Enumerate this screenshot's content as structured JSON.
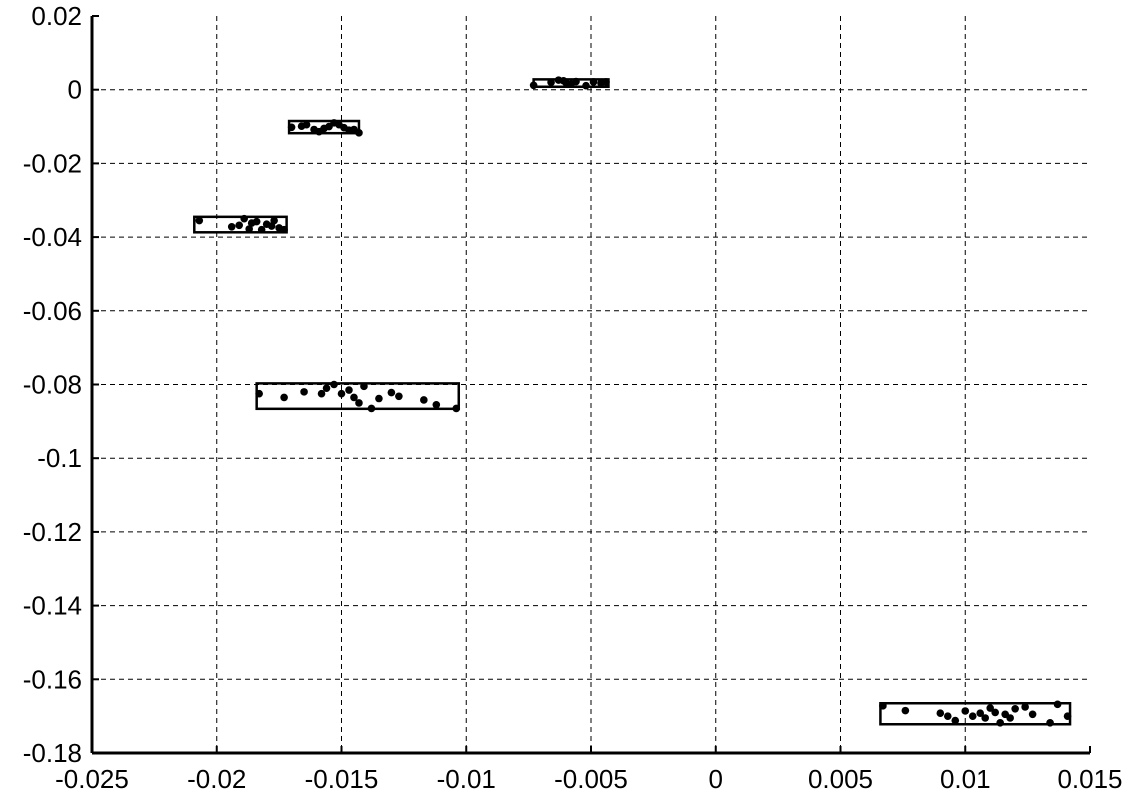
{
  "chart_data": {
    "type": "scatter",
    "title": "",
    "xlabel": "",
    "ylabel": "",
    "xlim": [
      -0.025,
      0.015
    ],
    "ylim": [
      -0.18,
      0.02
    ],
    "grid": true,
    "legend": "none",
    "x_ticks": [
      "-0.025",
      "-0.02",
      "-0.015",
      "-0.01",
      "-0.005",
      "0",
      "0.005",
      "0.01",
      "0.015"
    ],
    "x_tick_values": [
      -0.025,
      -0.02,
      -0.015,
      -0.01,
      -0.005,
      0,
      0.005,
      0.01,
      0.015
    ],
    "y_ticks": [
      "0.02",
      "0",
      "-0.02",
      "-0.04",
      "-0.06",
      "-0.08",
      "-0.1",
      "-0.12",
      "-0.14",
      "-0.16",
      "-0.18"
    ],
    "y_tick_values": [
      0.02,
      0,
      -0.02,
      -0.04,
      -0.06,
      -0.08,
      -0.1,
      -0.12,
      -0.14,
      -0.16,
      -0.18
    ],
    "colors": {
      "points": "#000000",
      "boxes": "#000000",
      "grid": "#000000"
    },
    "clusters": [
      {
        "box": {
          "xmin": -0.0073,
          "xmax": -0.0043,
          "ymin": 0.0008,
          "ymax": 0.0028
        },
        "points": [
          [
            -0.0073,
            0.0012
          ],
          [
            -0.0066,
            0.002
          ],
          [
            -0.0063,
            0.0026
          ],
          [
            -0.0061,
            0.0024
          ],
          [
            -0.006,
            0.0019
          ],
          [
            -0.0058,
            0.0015
          ],
          [
            -0.0056,
            0.0022
          ],
          [
            -0.0052,
            0.0011
          ],
          [
            -0.0049,
            0.0021
          ],
          [
            -0.0046,
            0.0018
          ],
          [
            -0.0044,
            0.0021
          ]
        ]
      },
      {
        "box": {
          "xmin": -0.0171,
          "xmax": -0.0143,
          "ymin": -0.0118,
          "ymax": -0.0085
        },
        "points": [
          [
            -0.017,
            -0.0102
          ],
          [
            -0.0166,
            -0.0099
          ],
          [
            -0.0164,
            -0.0095
          ],
          [
            -0.0161,
            -0.0108
          ],
          [
            -0.0159,
            -0.0114
          ],
          [
            -0.0157,
            -0.0105
          ],
          [
            -0.0155,
            -0.01
          ],
          [
            -0.0153,
            -0.009
          ],
          [
            -0.0151,
            -0.0095
          ],
          [
            -0.0149,
            -0.0103
          ],
          [
            -0.0147,
            -0.011
          ],
          [
            -0.0145,
            -0.0108
          ],
          [
            -0.0143,
            -0.0117
          ]
        ]
      },
      {
        "box": {
          "xmin": -0.0209,
          "xmax": -0.0172,
          "ymin": -0.0387,
          "ymax": -0.0345
        },
        "points": [
          [
            -0.0207,
            -0.0355
          ],
          [
            -0.0194,
            -0.0372
          ],
          [
            -0.0191,
            -0.0368
          ],
          [
            -0.0189,
            -0.035
          ],
          [
            -0.0187,
            -0.0378
          ],
          [
            -0.0186,
            -0.0362
          ],
          [
            -0.0184,
            -0.0358
          ],
          [
            -0.0182,
            -0.038
          ],
          [
            -0.018,
            -0.0365
          ],
          [
            -0.0178,
            -0.037
          ],
          [
            -0.0177,
            -0.0355
          ],
          [
            -0.0175,
            -0.0375
          ],
          [
            -0.0173,
            -0.038
          ]
        ]
      },
      {
        "box": {
          "xmin": -0.0184,
          "xmax": -0.0103,
          "ymin": -0.0866,
          "ymax": -0.0797
        },
        "points": [
          [
            -0.0183,
            -0.0825
          ],
          [
            -0.0173,
            -0.0835
          ],
          [
            -0.0165,
            -0.082
          ],
          [
            -0.0158,
            -0.0825
          ],
          [
            -0.0156,
            -0.081
          ],
          [
            -0.0153,
            -0.08
          ],
          [
            -0.015,
            -0.0825
          ],
          [
            -0.0147,
            -0.0815
          ],
          [
            -0.0145,
            -0.0835
          ],
          [
            -0.0143,
            -0.085
          ],
          [
            -0.0141,
            -0.0805
          ],
          [
            -0.0138,
            -0.0865
          ],
          [
            -0.0135,
            -0.0838
          ],
          [
            -0.013,
            -0.0822
          ],
          [
            -0.0127,
            -0.0832
          ],
          [
            -0.0117,
            -0.0842
          ],
          [
            -0.0112,
            -0.0855
          ],
          [
            -0.0104,
            -0.0865
          ]
        ]
      },
      {
        "box": {
          "xmin": 0.0066,
          "xmax": 0.0142,
          "ymin": -0.1722,
          "ymax": -0.1665
        },
        "points": [
          [
            0.0067,
            -0.1672
          ],
          [
            0.0076,
            -0.1685
          ],
          [
            0.009,
            -0.1692
          ],
          [
            0.0093,
            -0.17
          ],
          [
            0.0096,
            -0.1712
          ],
          [
            0.01,
            -0.1686
          ],
          [
            0.0103,
            -0.17
          ],
          [
            0.0106,
            -0.1692
          ],
          [
            0.0108,
            -0.1705
          ],
          [
            0.011,
            -0.1678
          ],
          [
            0.0112,
            -0.169
          ],
          [
            0.0114,
            -0.1718
          ],
          [
            0.0116,
            -0.1695
          ],
          [
            0.0118,
            -0.1705
          ],
          [
            0.012,
            -0.168
          ],
          [
            0.0124,
            -0.1675
          ],
          [
            0.0127,
            -0.1695
          ],
          [
            0.0134,
            -0.1718
          ],
          [
            0.0137,
            -0.1668
          ],
          [
            0.0141,
            -0.17
          ]
        ]
      }
    ]
  }
}
